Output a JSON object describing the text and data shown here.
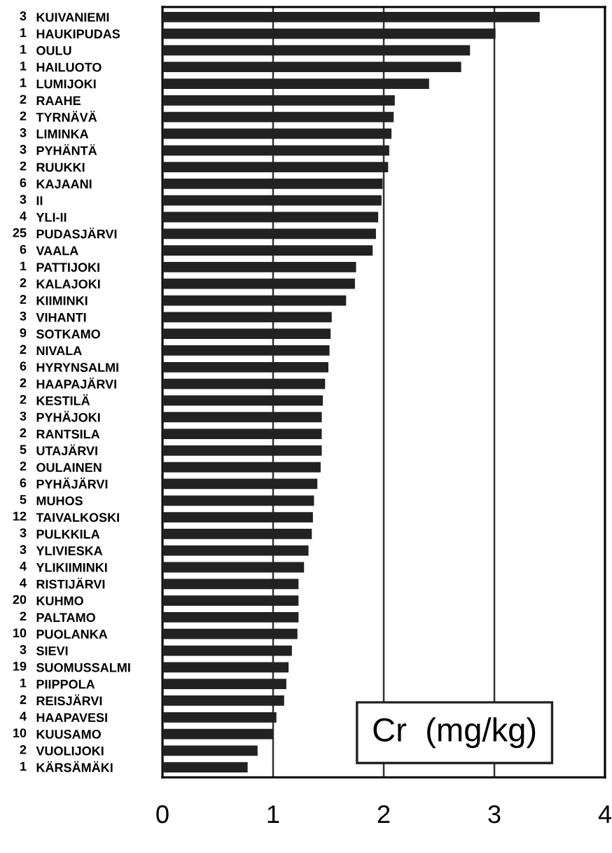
{
  "chart_data": {
    "type": "bar",
    "orientation": "horizontal",
    "categories": [
      "KUIVANIEMI",
      "HAUKIPUDAS",
      "OULU",
      "HAILUOTO",
      "LUMIJOKI",
      "RAAHE",
      "TYRNÄVÄ",
      "LIMINKA",
      "PYHÄNTÄ",
      "RUUKKI",
      "KAJAANI",
      "II",
      "YLI-II",
      "PUDASJÄRVI",
      "VAALA",
      "PATTIJOKI",
      "KALAJOKI",
      "KIIMINKI",
      "VIHANTI",
      "SOTKAMO",
      "NIVALA",
      "HYRYNSALMI",
      "HAAPAJÄRVI",
      "KESTILÄ",
      "PYHÄJOKI",
      "RANTSILA",
      "UTAJÄRVI",
      "OULAINEN",
      "PYHÄJÄRVI",
      "MUHOS",
      "TAIVALKOSKI",
      "PULKKILA",
      "YLIVIESKA",
      "YLIKIIMINKI",
      "RISTIJÄRVI",
      "KUHMO",
      "PALTAMO",
      "PUOLANKA",
      "SIEVI",
      "SUOMUSSALMI",
      "PIIPPOLA",
      "REISJÄRVI",
      "HAAPAVESI",
      "KUUSAMO",
      "VUOLIJOKI",
      "KÄRSÄMÄKI"
    ],
    "values": [
      3.41,
      3.01,
      2.78,
      2.7,
      2.41,
      2.1,
      2.09,
      2.07,
      2.05,
      2.04,
      1.99,
      1.98,
      1.95,
      1.93,
      1.9,
      1.75,
      1.74,
      1.66,
      1.53,
      1.52,
      1.51,
      1.5,
      1.47,
      1.45,
      1.44,
      1.44,
      1.44,
      1.43,
      1.4,
      1.37,
      1.36,
      1.35,
      1.32,
      1.28,
      1.23,
      1.23,
      1.23,
      1.22,
      1.17,
      1.14,
      1.12,
      1.1,
      1.03,
      1.0,
      0.86,
      0.77
    ],
    "color": "#222222",
    "xlim": [
      0,
      4
    ],
    "xticks": [
      0,
      1,
      2,
      3,
      4
    ],
    "grid": "x",
    "annotations": [
      "Cr  (mg/kg)",
      "3",
      "1",
      "1",
      "1",
      "1",
      "2",
      "2",
      "3",
      "3",
      "2",
      "6",
      "3",
      "4",
      "25",
      "6",
      "1",
      "2",
      "2",
      "3",
      "9",
      "2",
      "6",
      "2",
      "2",
      "3",
      "2",
      "5",
      "2",
      "6",
      "5",
      "12",
      "3",
      "3",
      "4",
      "4",
      "20",
      "2",
      "10",
      "3",
      "19",
      "1",
      "2",
      "4",
      "10",
      "2",
      "1"
    ]
  }
}
